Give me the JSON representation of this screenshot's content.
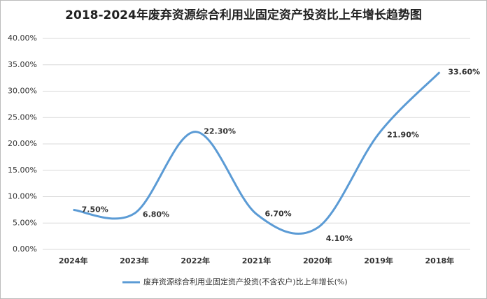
{
  "chart_data": {
    "type": "line",
    "title": "2018-2024年废弃资源综合利用业固定资产投资比上年增长趋势图",
    "categories": [
      "2024年",
      "2023年",
      "2022年",
      "2021年",
      "2020年",
      "2019年",
      "2018年"
    ],
    "series": [
      {
        "name": "废弃资源综合利用业固定资产投资(不含农户)比上年增长(%)",
        "color": "#5b9bd5",
        "values": [
          7.5,
          6.8,
          22.3,
          6.7,
          4.1,
          21.9,
          33.6
        ],
        "value_labels": [
          "7.50%",
          "6.80%",
          "22.30%",
          "6.70%",
          "4.10%",
          "21.90%",
          "33.60%"
        ]
      }
    ],
    "ylim": [
      0,
      40
    ],
    "yticks": [
      {
        "value": 0,
        "label": "0.00%"
      },
      {
        "value": 5,
        "label": "5.00%"
      },
      {
        "value": 10,
        "label": "10.00%"
      },
      {
        "value": 15,
        "label": "15.00%"
      },
      {
        "value": 20,
        "label": "20.00%"
      },
      {
        "value": 25,
        "label": "25.00%"
      },
      {
        "value": 30,
        "label": "30.00%"
      },
      {
        "value": 35,
        "label": "35.00%"
      },
      {
        "value": 40,
        "label": "40.00%"
      }
    ],
    "grid": true,
    "smooth": true,
    "legend": "bottom"
  }
}
